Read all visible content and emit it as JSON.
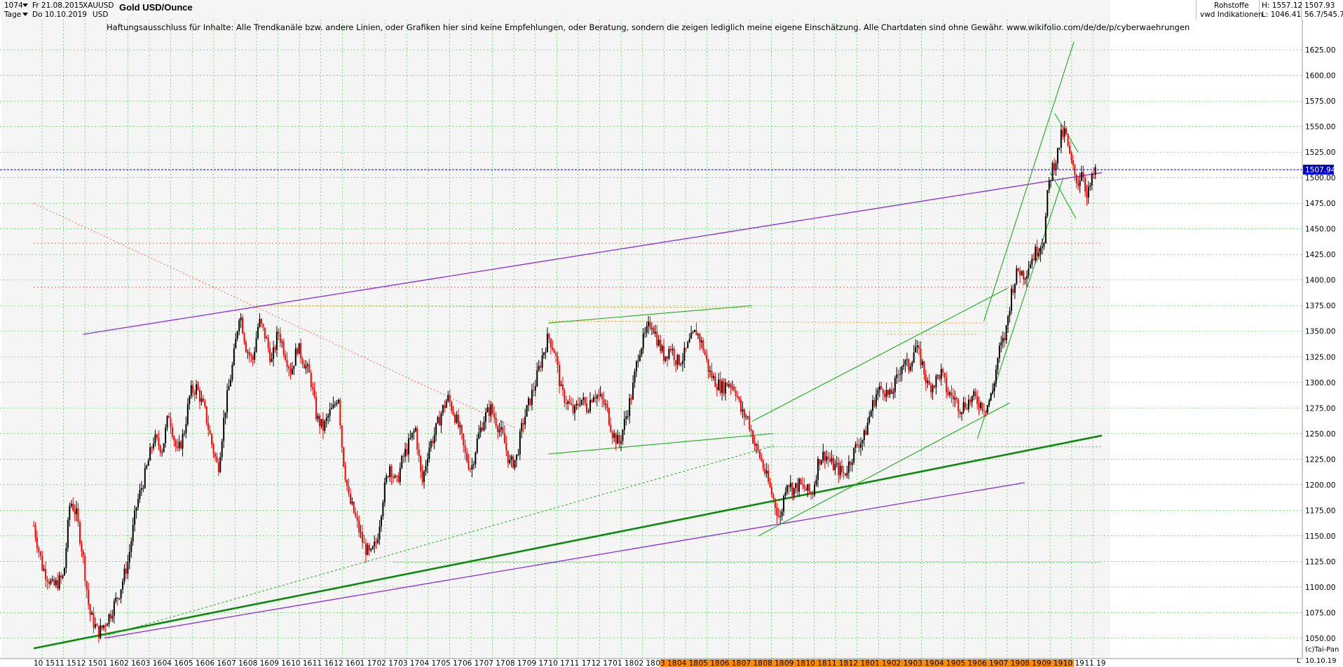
{
  "header": {
    "bar_count": "1074",
    "date_from": "Fr 21.08.2015",
    "date_to": "Do 10.10.2019",
    "period": "Tage",
    "symbol": "XAUUSD",
    "currency": "USD",
    "title": "Gold USD/Ounce",
    "category": "Rohstoffe",
    "source": "vwd Indikationen",
    "high": "H: 1557.12",
    "low": "L: 1046.41",
    "last": "1507.93",
    "ratio": "56.7/545.7"
  },
  "disclaimer": "Haftungsausschluss für Inhalte: Alle Trendkanäle bzw. andere Linien, oder Grafiken hier sind keine Empfehlungen, oder Beratung, sondern die zeigen lediglich meine eigene Einschätzung. Alle Chartdaten sind ohne Gewähr.  www.wikifolio.com/de/de/p/cyberwaehrungen",
  "footer": {
    "copyright": "(c)Tai-Pan",
    "end_date": "10.10.19",
    "l_marker": "L"
  },
  "colors": {
    "up_candle": "#000000",
    "down_candle": "#ff0000",
    "grid": "#2ecc2e",
    "purple_lines": "#8a2be2",
    "green_lines": "#1faa1f",
    "thick_trend": "#0a8a0a",
    "red_dotted": "#ff6060",
    "orange_dotted": "#ff8c00",
    "current_price_line": "#0000cc",
    "price_box": "#0000cc",
    "future_bar": "#ff8c00",
    "background_band": "#f5f5f5"
  },
  "chart_data": {
    "type": "candlestick",
    "title": "Gold USD/Ounce",
    "ylim": [
      1030,
      1645
    ],
    "y_ticks": [
      1050,
      1075,
      1100,
      1125,
      1150,
      1175,
      1200,
      1225,
      1250,
      1275,
      1300,
      1325,
      1350,
      1375,
      1400,
      1425,
      1450,
      1475,
      1500,
      1525,
      1550,
      1575,
      1600,
      1625
    ],
    "y_tick_labels": [
      "1050.00",
      "1075.00",
      "1100.00",
      "1125.00",
      "1150.00",
      "1175.00",
      "1200.00",
      "1225.00",
      "1250.00",
      "1275.00",
      "1300.00",
      "1325.00",
      "1350.00",
      "1375.00",
      "1400.00",
      "1425.00",
      "1450.00",
      "1475.00",
      "1500.00",
      "1525.00",
      "1550.00",
      "1575.00",
      "1600.00",
      "1625.00"
    ],
    "current_price": 1507.94,
    "current_price_label": "1507.94",
    "x_tick_labels": [
      "10 15",
      "11 15",
      "12 15",
      "01 16",
      "02 16",
      "03 16",
      "04 16",
      "05 16",
      "06 16",
      "07 16",
      "08 16",
      "09 16",
      "10 16",
      "11 16",
      "12 16",
      "01 17",
      "02 17",
      "03 17",
      "04 17",
      "05 17",
      "06 17",
      "07 17",
      "08 17",
      "09 17",
      "10 17",
      "11 17",
      "12 17",
      "01 18",
      "02 18",
      "03 18",
      "04 18",
      "05 18",
      "06 18",
      "07 18",
      "08 18",
      "09 18",
      "10 18",
      "11 18",
      "12 18",
      "01 19",
      "02 19",
      "03 19",
      "04 19",
      "05 19",
      "06 19",
      "07 19",
      "08 19",
      "09 19",
      "10 19",
      "11 19"
    ],
    "price_path": [
      [
        0,
        1160
      ],
      [
        0.4,
        1120
      ],
      [
        0.9,
        1100
      ],
      [
        1.4,
        1110
      ],
      [
        1.7,
        1185
      ],
      [
        2.0,
        1170
      ],
      [
        2.3,
        1130
      ],
      [
        2.6,
        1075
      ],
      [
        3.0,
        1055
      ],
      [
        3.2,
        1060
      ],
      [
        3.6,
        1075
      ],
      [
        4.0,
        1095
      ],
      [
        4.4,
        1125
      ],
      [
        4.8,
        1180
      ],
      [
        5.2,
        1210
      ],
      [
        5.6,
        1245
      ],
      [
        6.0,
        1235
      ],
      [
        6.3,
        1270
      ],
      [
        6.7,
        1230
      ],
      [
        7.0,
        1250
      ],
      [
        7.3,
        1290
      ],
      [
        7.6,
        1295
      ],
      [
        8.0,
        1270
      ],
      [
        8.3,
        1240
      ],
      [
        8.6,
        1215
      ],
      [
        8.9,
        1270
      ],
      [
        9.3,
        1320
      ],
      [
        9.6,
        1370
      ],
      [
        9.9,
        1335
      ],
      [
        10.2,
        1320
      ],
      [
        10.5,
        1360
      ],
      [
        10.8,
        1345
      ],
      [
        11.1,
        1320
      ],
      [
        11.4,
        1350
      ],
      [
        11.7,
        1330
      ],
      [
        12.0,
        1310
      ],
      [
        12.3,
        1335
      ],
      [
        12.6,
        1320
      ],
      [
        12.9,
        1305
      ],
      [
        13.2,
        1265
      ],
      [
        13.5,
        1255
      ],
      [
        13.8,
        1270
      ],
      [
        14.0,
        1275
      ],
      [
        14.2,
        1290
      ],
      [
        14.4,
        1230
      ],
      [
        14.7,
        1185
      ],
      [
        14.9,
        1175
      ],
      [
        15.1,
        1160
      ],
      [
        15.4,
        1140
      ],
      [
        15.7,
        1130
      ],
      [
        16.0,
        1145
      ],
      [
        16.3,
        1190
      ],
      [
        16.6,
        1220
      ],
      [
        16.9,
        1200
      ],
      [
        17.2,
        1225
      ],
      [
        17.5,
        1240
      ],
      [
        17.8,
        1255
      ],
      [
        18.1,
        1200
      ],
      [
        18.4,
        1235
      ],
      [
        18.7,
        1250
      ],
      [
        19.0,
        1270
      ],
      [
        19.3,
        1285
      ],
      [
        19.6,
        1270
      ],
      [
        19.9,
        1250
      ],
      [
        20.1,
        1230
      ],
      [
        20.4,
        1215
      ],
      [
        20.7,
        1245
      ],
      [
        21.0,
        1265
      ],
      [
        21.3,
        1275
      ],
      [
        21.6,
        1260
      ],
      [
        21.9,
        1245
      ],
      [
        22.2,
        1220
      ],
      [
        22.5,
        1225
      ],
      [
        22.8,
        1260
      ],
      [
        23.1,
        1280
      ],
      [
        23.4,
        1300
      ],
      [
        23.7,
        1325
      ],
      [
        24.0,
        1345
      ],
      [
        24.3,
        1330
      ],
      [
        24.6,
        1290
      ],
      [
        24.9,
        1280
      ],
      [
        25.2,
        1270
      ],
      [
        25.5,
        1285
      ],
      [
        25.8,
        1275
      ],
      [
        26.1,
        1290
      ],
      [
        26.4,
        1285
      ],
      [
        26.7,
        1275
      ],
      [
        27.0,
        1250
      ],
      [
        27.3,
        1240
      ],
      [
        27.6,
        1265
      ],
      [
        27.9,
        1290
      ],
      [
        28.2,
        1330
      ],
      [
        28.5,
        1345
      ],
      [
        28.8,
        1360
      ],
      [
        29.1,
        1340
      ],
      [
        29.4,
        1325
      ],
      [
        29.7,
        1335
      ],
      [
        30.0,
        1320
      ],
      [
        30.3,
        1325
      ],
      [
        30.6,
        1340
      ],
      [
        30.9,
        1350
      ],
      [
        31.2,
        1335
      ],
      [
        31.5,
        1310
      ],
      [
        31.8,
        1300
      ],
      [
        32.1,
        1295
      ],
      [
        32.4,
        1300
      ],
      [
        32.7,
        1295
      ],
      [
        33.0,
        1270
      ],
      [
        33.3,
        1265
      ],
      [
        33.6,
        1240
      ],
      [
        33.9,
        1225
      ],
      [
        34.2,
        1205
      ],
      [
        34.5,
        1185
      ],
      [
        34.8,
        1165
      ],
      [
        35.1,
        1205
      ],
      [
        35.4,
        1195
      ],
      [
        35.7,
        1200
      ],
      [
        36.0,
        1195
      ],
      [
        36.3,
        1190
      ],
      [
        36.6,
        1225
      ],
      [
        36.9,
        1230
      ],
      [
        37.2,
        1220
      ],
      [
        37.5,
        1215
      ],
      [
        37.8,
        1210
      ],
      [
        38.1,
        1225
      ],
      [
        38.4,
        1240
      ],
      [
        38.7,
        1245
      ],
      [
        39.0,
        1270
      ],
      [
        39.3,
        1290
      ],
      [
        39.6,
        1295
      ],
      [
        39.9,
        1285
      ],
      [
        40.2,
        1300
      ],
      [
        40.5,
        1320
      ],
      [
        40.8,
        1315
      ],
      [
        41.1,
        1335
      ],
      [
        41.4,
        1320
      ],
      [
        41.7,
        1295
      ],
      [
        42.0,
        1300
      ],
      [
        42.3,
        1310
      ],
      [
        42.6,
        1290
      ],
      [
        42.9,
        1285
      ],
      [
        43.2,
        1275
      ],
      [
        43.5,
        1280
      ],
      [
        43.8,
        1285
      ],
      [
        44.1,
        1280
      ],
      [
        44.4,
        1275
      ],
      [
        44.7,
        1290
      ],
      [
        45.0,
        1330
      ],
      [
        45.3,
        1345
      ],
      [
        45.6,
        1390
      ],
      [
        45.9,
        1410
      ],
      [
        46.2,
        1405
      ],
      [
        46.5,
        1420
      ],
      [
        46.8,
        1430
      ],
      [
        47.1,
        1440
      ],
      [
        47.3,
        1490
      ],
      [
        47.5,
        1510
      ],
      [
        47.7,
        1520
      ],
      [
        47.9,
        1540
      ],
      [
        48.1,
        1545
      ],
      [
        48.3,
        1520
      ],
      [
        48.5,
        1505
      ],
      [
        48.7,
        1495
      ],
      [
        48.9,
        1510
      ],
      [
        49.1,
        1480
      ],
      [
        49.3,
        1495
      ],
      [
        49.5,
        1507.94
      ]
    ],
    "trend_lines": [
      {
        "name": "purple-upper",
        "points": [
          [
            2.3,
            1347
          ],
          [
            49.8,
            1505
          ]
        ]
      },
      {
        "name": "purple-lower",
        "points": [
          [
            3.3,
            1050
          ],
          [
            46.2,
            1202
          ]
        ]
      },
      {
        "name": "green-thick-main",
        "points": [
          [
            0,
            1040
          ],
          [
            49.8,
            1248
          ]
        ]
      },
      {
        "name": "green-thin-2015",
        "points": [
          [
            3.3,
            1052
          ],
          [
            34.5,
            1238
          ]
        ]
      },
      {
        "name": "green-range-top",
        "points": [
          [
            24.0,
            1358
          ],
          [
            33.5,
            1375
          ]
        ]
      },
      {
        "name": "green-range-bottom",
        "points": [
          [
            24.0,
            1230
          ],
          [
            34.5,
            1250
          ]
        ]
      },
      {
        "name": "green-channel-2018-top",
        "points": [
          [
            33.5,
            1262
          ],
          [
            45.4,
            1392
          ]
        ]
      },
      {
        "name": "green-channel-2018-bottom",
        "points": [
          [
            33.8,
            1150
          ],
          [
            45.5,
            1280
          ]
        ]
      },
      {
        "name": "green-steep-top",
        "points": [
          [
            44.3,
            1360
          ],
          [
            48.5,
            1633
          ]
        ]
      },
      {
        "name": "green-steep-bottom",
        "points": [
          [
            44.0,
            1245
          ],
          [
            48.0,
            1500
          ]
        ]
      },
      {
        "name": "green-flag-top",
        "points": [
          [
            47.6,
            1563
          ],
          [
            48.7,
            1525
          ]
        ]
      },
      {
        "name": "green-flag-bottom",
        "points": [
          [
            47.4,
            1505
          ],
          [
            48.6,
            1460
          ]
        ]
      }
    ],
    "dashed_lines": [
      {
        "name": "red-down-dotted",
        "points": [
          [
            0,
            1475
          ],
          [
            22.5,
            1255
          ]
        ],
        "style": "red"
      },
      {
        "name": "red-h-1435",
        "points": [
          [
            0,
            1436
          ],
          [
            49.8,
            1436
          ]
        ],
        "style": "red"
      },
      {
        "name": "red-h-1393",
        "points": [
          [
            0,
            1393
          ],
          [
            49.8,
            1393
          ]
        ],
        "style": "red"
      },
      {
        "name": "orange-1375",
        "points": [
          [
            10.4,
            1375
          ],
          [
            33.5,
            1373
          ]
        ],
        "style": "orange"
      },
      {
        "name": "orange-1358",
        "points": [
          [
            24.0,
            1360
          ],
          [
            44.5,
            1358
          ]
        ],
        "style": "orange"
      },
      {
        "name": "orange-1348",
        "points": [
          [
            39.8,
            1347
          ],
          [
            44.0,
            1347
          ]
        ],
        "style": "orange"
      },
      {
        "name": "green-h-1237",
        "points": [
          [
            34.0,
            1237
          ],
          [
            49.8,
            1237
          ]
        ],
        "style": "green"
      },
      {
        "name": "green-h-1124",
        "points": [
          [
            16.8,
            1124
          ],
          [
            49.8,
            1124
          ]
        ],
        "style": "green"
      }
    ]
  }
}
